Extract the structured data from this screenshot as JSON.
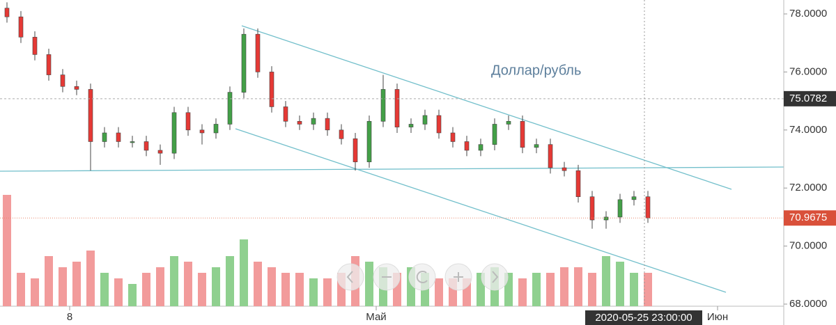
{
  "chart_data": {
    "type": "candlestick",
    "annotation": "Доллар/рубль",
    "open": [
      78.2,
      77.9,
      77.2,
      76.6,
      75.9,
      75.5,
      75.4,
      73.6,
      73.9,
      73.6,
      73.6,
      73.3,
      73.2,
      74.6,
      74.0,
      73.9,
      74.2,
      75.3,
      77.3,
      76.0,
      74.8,
      74.3,
      74.2,
      74.4,
      74.0,
      73.7,
      72.9,
      74.3,
      75.4,
      74.1,
      74.2,
      74.5,
      73.9,
      73.6,
      73.3,
      73.5,
      74.2,
      74.3,
      73.4,
      73.5,
      72.7,
      72.6,
      71.7,
      70.9,
      71.0,
      71.6,
      71.7
    ],
    "high": [
      78.4,
      78.1,
      77.4,
      76.8,
      76.1,
      75.7,
      75.6,
      74.1,
      74.1,
      73.8,
      73.8,
      73.5,
      74.8,
      74.8,
      74.2,
      74.4,
      75.5,
      77.5,
      77.5,
      76.2,
      75.0,
      74.5,
      74.6,
      74.6,
      74.2,
      73.9,
      74.5,
      75.9,
      75.6,
      74.4,
      74.7,
      74.7,
      74.1,
      73.8,
      73.7,
      74.4,
      74.5,
      74.5,
      73.7,
      73.7,
      72.9,
      72.8,
      71.9,
      71.2,
      71.8,
      71.9,
      71.9
    ],
    "low": [
      77.7,
      77.0,
      76.4,
      75.7,
      75.3,
      75.2,
      72.6,
      73.4,
      73.4,
      73.4,
      73.1,
      72.8,
      73.0,
      73.8,
      73.5,
      73.7,
      74.0,
      75.1,
      75.8,
      74.6,
      74.1,
      74.0,
      74.0,
      73.8,
      73.5,
      72.6,
      72.7,
      74.1,
      73.9,
      73.9,
      74.0,
      73.7,
      73.4,
      73.1,
      73.1,
      73.3,
      74.0,
      73.2,
      73.2,
      72.5,
      72.4,
      71.5,
      70.6,
      70.6,
      70.8,
      71.4,
      70.8
    ],
    "close": [
      77.9,
      77.2,
      76.6,
      75.9,
      75.5,
      75.4,
      73.6,
      73.9,
      73.6,
      73.6,
      73.3,
      73.2,
      74.6,
      74.0,
      73.9,
      74.2,
      75.3,
      77.3,
      76.0,
      74.8,
      74.3,
      74.2,
      74.4,
      74.0,
      73.7,
      72.9,
      74.3,
      75.4,
      74.1,
      74.2,
      74.5,
      73.9,
      73.6,
      73.3,
      73.5,
      74.2,
      74.3,
      73.4,
      73.5,
      72.7,
      72.6,
      71.7,
      70.9,
      71.0,
      71.6,
      71.7,
      70.9675
    ],
    "volume": [
      100,
      30,
      25,
      45,
      35,
      40,
      50,
      30,
      25,
      20,
      30,
      35,
      45,
      40,
      30,
      35,
      45,
      60,
      40,
      35,
      30,
      30,
      25,
      25,
      30,
      45,
      40,
      35,
      30,
      35,
      30,
      25,
      25,
      25,
      30,
      35,
      30,
      25,
      30,
      30,
      35,
      35,
      30,
      45,
      40,
      30,
      30
    ],
    "vlim": [
      0,
      100
    ],
    "up_color": "#43a047",
    "down_color": "#e53935",
    "up_volume_color": "#8fd08f",
    "down_volume_color": "#f29b9b",
    "xlim": [
      -0.5,
      55.75
    ],
    "xticks": [
      {
        "value": 4.5,
        "label": "8"
      },
      {
        "value": 26.5,
        "label": "Май"
      },
      {
        "value": 51,
        "label": "Июн"
      }
    ],
    "ylim": [
      67.28,
      78.48
    ],
    "yticks": [
      {
        "value": 68,
        "label": "68.0000"
      },
      {
        "value": 70,
        "label": "70.0000"
      },
      {
        "value": 72,
        "label": "72.0000"
      },
      {
        "value": 74,
        "label": "74.0000"
      },
      {
        "value": 76,
        "label": "76.0000"
      },
      {
        "value": 78,
        "label": "78.0000"
      }
    ],
    "marker_price": {
      "value": 75.0782,
      "label": "75.0782"
    },
    "last_price": {
      "value": 70.9675,
      "label": "70.9675"
    },
    "crosshair_label": "2020-05-25 23:00:00",
    "grid": false
  }
}
